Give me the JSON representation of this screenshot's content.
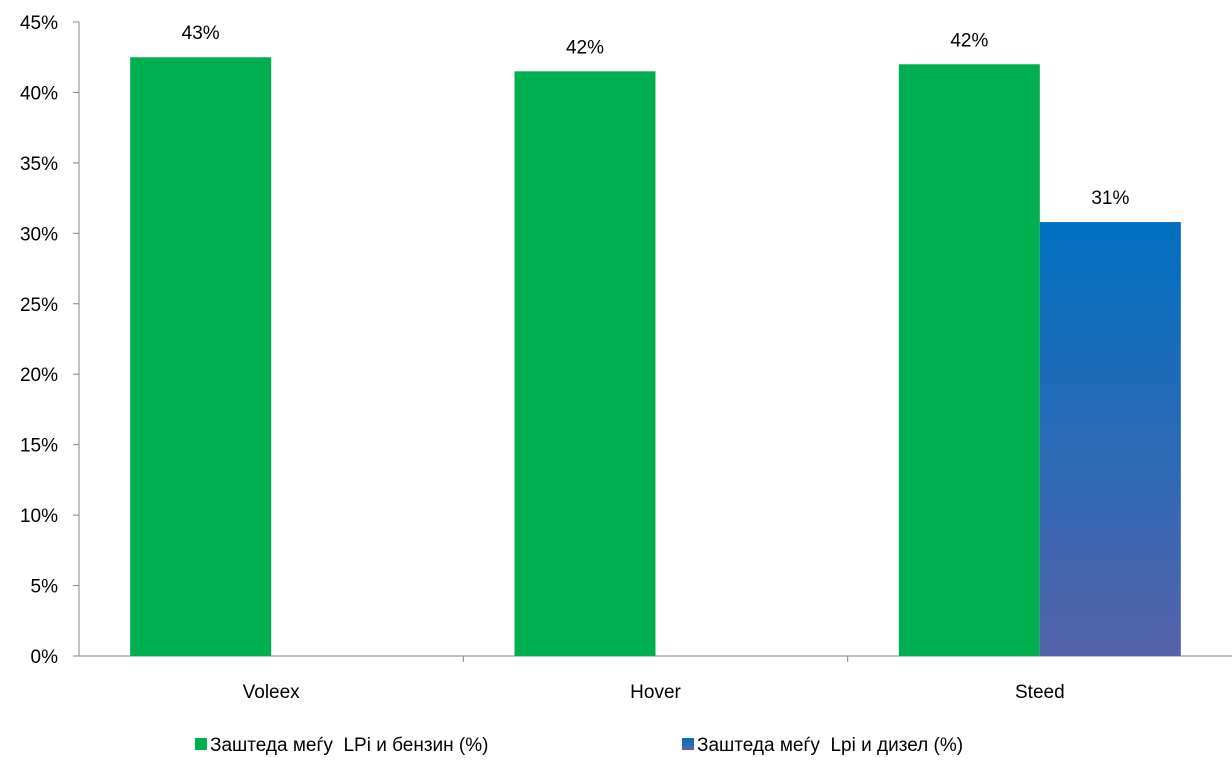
{
  "chart_data": {
    "type": "bar",
    "categories": [
      "Voleex",
      "Hover",
      "Steed"
    ],
    "series": [
      {
        "name": "Заштеда меѓу  LPi и бензин (%)",
        "values": [
          0.425,
          0.415,
          0.42
        ],
        "labels": [
          "43%",
          "42%",
          "42%"
        ],
        "color": "#00B050"
      },
      {
        "name": "Заштеда меѓу  Lpi и дизел (%)",
        "values": [
          null,
          null,
          0.308
        ],
        "labels": [
          null,
          null,
          "31%"
        ],
        "color_top": "#0070C0",
        "color_bottom": "#5463AB"
      }
    ],
    "y_ticks": [
      "0%",
      "5%",
      "10%",
      "15%",
      "20%",
      "25%",
      "30%",
      "35%",
      "40%",
      "45%"
    ],
    "ylim": [
      0,
      0.45
    ],
    "grid": false,
    "legend_position": "bottom"
  }
}
